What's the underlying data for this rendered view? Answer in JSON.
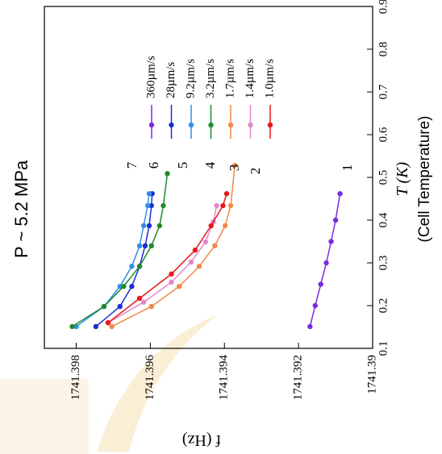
{
  "chart_data": {
    "type": "line",
    "title": "P ~ 5.2 MPa",
    "xlabel": "T (K)",
    "xlabel_note": "(Cell Temperature)",
    "ylabel": "f (Hz)",
    "xlim": [
      0.1,
      0.9
    ],
    "xticks": [
      0.1,
      0.2,
      0.3,
      0.4,
      0.5,
      0.6,
      0.7,
      0.8,
      0.9
    ],
    "ylim": [
      1741.39886,
      1741.39
    ],
    "yticks": [
      1741.398,
      1741.396,
      1741.394,
      1741.392,
      1741.39
    ],
    "annotations": [
      "1",
      "2",
      "3",
      "4",
      "5",
      "6",
      "7"
    ],
    "series": [
      {
        "name": "360µm/s",
        "color": "#7a2be0",
        "x": [
          0.151,
          0.2,
          0.25,
          0.3,
          0.35,
          0.4,
          0.462
        ],
        "values": [
          1741.39169,
          1741.39155,
          1741.3914,
          1741.39125,
          1741.39112,
          1741.391,
          1741.39088
        ]
      },
      {
        "name": "28µm/s",
        "color": "#1a2fd0",
        "x": [
          0.151,
          0.198,
          0.245,
          0.292,
          0.34,
          0.387,
          0.434,
          0.462
        ],
        "values": [
          1741.39747,
          1741.39682,
          1741.3965,
          1741.39629,
          1741.39614,
          1741.39603,
          1741.39597,
          1741.39595
        ]
      },
      {
        "name": "9.2µm/s",
        "color": "#2f8fe8",
        "x": [
          0.151,
          0.198,
          0.245,
          0.292,
          0.34,
          0.387,
          0.434,
          0.462
        ],
        "values": [
          1741.398,
          1741.39725,
          1741.39682,
          1741.3965,
          1741.39629,
          1741.39618,
          1741.39607,
          1741.39603
        ]
      },
      {
        "name": "3.2µm/s",
        "color": "#1f8a2a",
        "x": [
          0.151,
          0.198,
          0.245,
          0.292,
          0.34,
          0.387,
          0.434,
          0.509
        ],
        "values": [
          1741.39811,
          1741.39725,
          1741.39672,
          1741.39629,
          1741.39597,
          1741.39575,
          1741.39565,
          1741.39554
        ]
      },
      {
        "name": "1.7µm/s",
        "color": "#f08a4a",
        "x": [
          0.151,
          0.198,
          0.245,
          0.292,
          0.34,
          0.387,
          0.434,
          0.528
        ],
        "values": [
          1741.39704,
          1741.39597,
          1741.39522,
          1741.39468,
          1741.39426,
          1741.39398,
          1741.39383,
          1741.39372
        ]
      },
      {
        "name": "1.4µm/s",
        "color": "#e088c8",
        "x": [
          0.16,
          0.208,
          0.255,
          0.302,
          0.349,
          0.396,
          0.434
        ],
        "values": [
          1741.39714,
          1741.39618,
          1741.39543,
          1741.3949,
          1741.39451,
          1741.3943,
          1741.39421
        ]
      },
      {
        "name": "1.0µm/s",
        "color": "#e81818",
        "x": [
          0.16,
          0.217,
          0.274,
          0.33,
          0.387,
          0.434,
          0.462
        ],
        "values": [
          1741.39714,
          1741.39629,
          1741.39543,
          1741.39479,
          1741.39436,
          1741.39404,
          1741.39394
        ]
      }
    ]
  }
}
